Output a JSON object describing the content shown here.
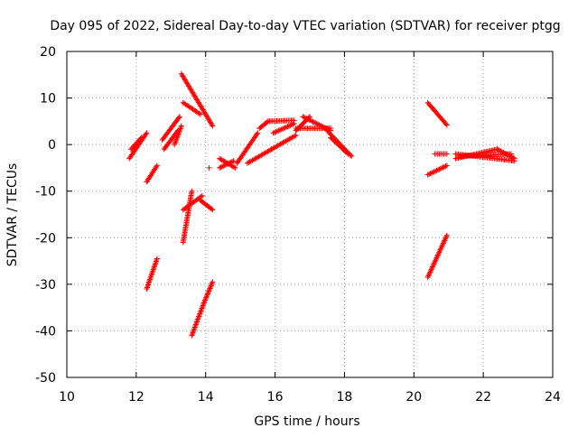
{
  "chart_data": {
    "type": "scatter",
    "title": "Day 095 of 2022, Sidereal Day-to-day VTEC variation (SDTVAR) for receiver ptgg",
    "xlabel": "GPS time / hours",
    "ylabel": "SDTVAR / TECUs",
    "xlim": [
      10,
      24
    ],
    "ylim": [
      -50,
      20
    ],
    "xticks": [
      "10",
      "12",
      "14",
      "16",
      "18",
      "20",
      "22",
      "24"
    ],
    "yticks": [
      "20",
      "10",
      "0",
      "-10",
      "-20",
      "-30",
      "-40",
      "-50"
    ],
    "grid": true,
    "marker": "+",
    "marker_color": "#ff0000",
    "series": [
      {
        "segments": [
          {
            "from": [
              11.8,
              -3
            ],
            "to": [
              12.3,
              2.5
            ]
          },
          {
            "from": [
              11.85,
              -1
            ],
            "to": [
              12.15,
              1.5
            ]
          },
          {
            "from": [
              12.3,
              -8
            ],
            "to": [
              12.6,
              -4.5
            ]
          },
          {
            "from": [
              12.75,
              1
            ],
            "to": [
              13.25,
              6
            ]
          },
          {
            "from": [
              12.8,
              -1
            ],
            "to": [
              13.2,
              3
            ]
          },
          {
            "from": [
              13.1,
              0
            ],
            "to": [
              13.3,
              4
            ]
          },
          {
            "from": [
              12.3,
              -31
            ],
            "to": [
              12.6,
              -24.5
            ]
          },
          {
            "from": [
              13.3,
              15.2
            ],
            "to": [
              14.2,
              4
            ]
          },
          {
            "from": [
              13.35,
              9
            ],
            "to": [
              13.85,
              6.5
            ]
          },
          {
            "from": [
              13.35,
              -21
            ],
            "to": [
              13.6,
              -10
            ]
          },
          {
            "from": [
              13.35,
              -14
            ],
            "to": [
              13.9,
              -11
            ]
          },
          {
            "from": [
              13.85,
              -12
            ],
            "to": [
              14.2,
              -14
            ]
          },
          {
            "from": [
              13.6,
              -41
            ],
            "to": [
              13.95,
              -34
            ]
          },
          {
            "from": [
              13.95,
              -34
            ],
            "to": [
              14.2,
              -29.5
            ]
          },
          {
            "from": [
              14.4,
              -3
            ],
            "to": [
              14.85,
              -5
            ]
          },
          {
            "from": [
              14.4,
              -5
            ],
            "to": [
              14.8,
              -3.5
            ]
          },
          {
            "from": [
              14.9,
              -4
            ],
            "to": [
              15.5,
              2.5
            ]
          },
          {
            "from": [
              15.2,
              -4
            ],
            "to": [
              15.9,
              -1
            ]
          },
          {
            "from": [
              15.55,
              3.5
            ],
            "to": [
              15.8,
              5
            ]
          },
          {
            "from": [
              15.8,
              5
            ],
            "to": [
              16.55,
              5.2
            ]
          },
          {
            "from": [
              15.9,
              -1
            ],
            "to": [
              16.6,
              2
            ]
          },
          {
            "from": [
              15.95,
              2.5
            ],
            "to": [
              16.55,
              4.5
            ]
          },
          {
            "from": [
              16.6,
              3
            ],
            "to": [
              17.0,
              6
            ]
          },
          {
            "from": [
              16.8,
              6
            ],
            "to": [
              17.6,
              3
            ]
          },
          {
            "from": [
              16.6,
              3.5
            ],
            "to": [
              17.6,
              3.5
            ]
          },
          {
            "from": [
              17.5,
              3
            ],
            "to": [
              18.2,
              -2.5
            ]
          },
          {
            "from": [
              17.6,
              1.5
            ],
            "to": [
              18.1,
              -2
            ]
          },
          {
            "from": [
              20.4,
              9
            ],
            "to": [
              20.95,
              4.2
            ]
          },
          {
            "from": [
              20.4,
              -6.5
            ],
            "to": [
              20.95,
              -4.5
            ]
          },
          {
            "from": [
              20.6,
              -2
            ],
            "to": [
              20.95,
              -2
            ]
          },
          {
            "from": [
              20.4,
              -28.5
            ],
            "to": [
              20.95,
              -19.5
            ]
          },
          {
            "from": [
              21.2,
              -2
            ],
            "to": [
              22.9,
              -3.5
            ]
          },
          {
            "from": [
              21.2,
              -3
            ],
            "to": [
              22.4,
              -1
            ]
          },
          {
            "from": [
              21.3,
              -2.5
            ],
            "to": [
              22.8,
              -2
            ]
          },
          {
            "from": [
              22.4,
              -1
            ],
            "to": [
              22.9,
              -3
            ]
          }
        ],
        "points": [
          [
            14.1,
            -5
          ]
        ]
      }
    ]
  }
}
